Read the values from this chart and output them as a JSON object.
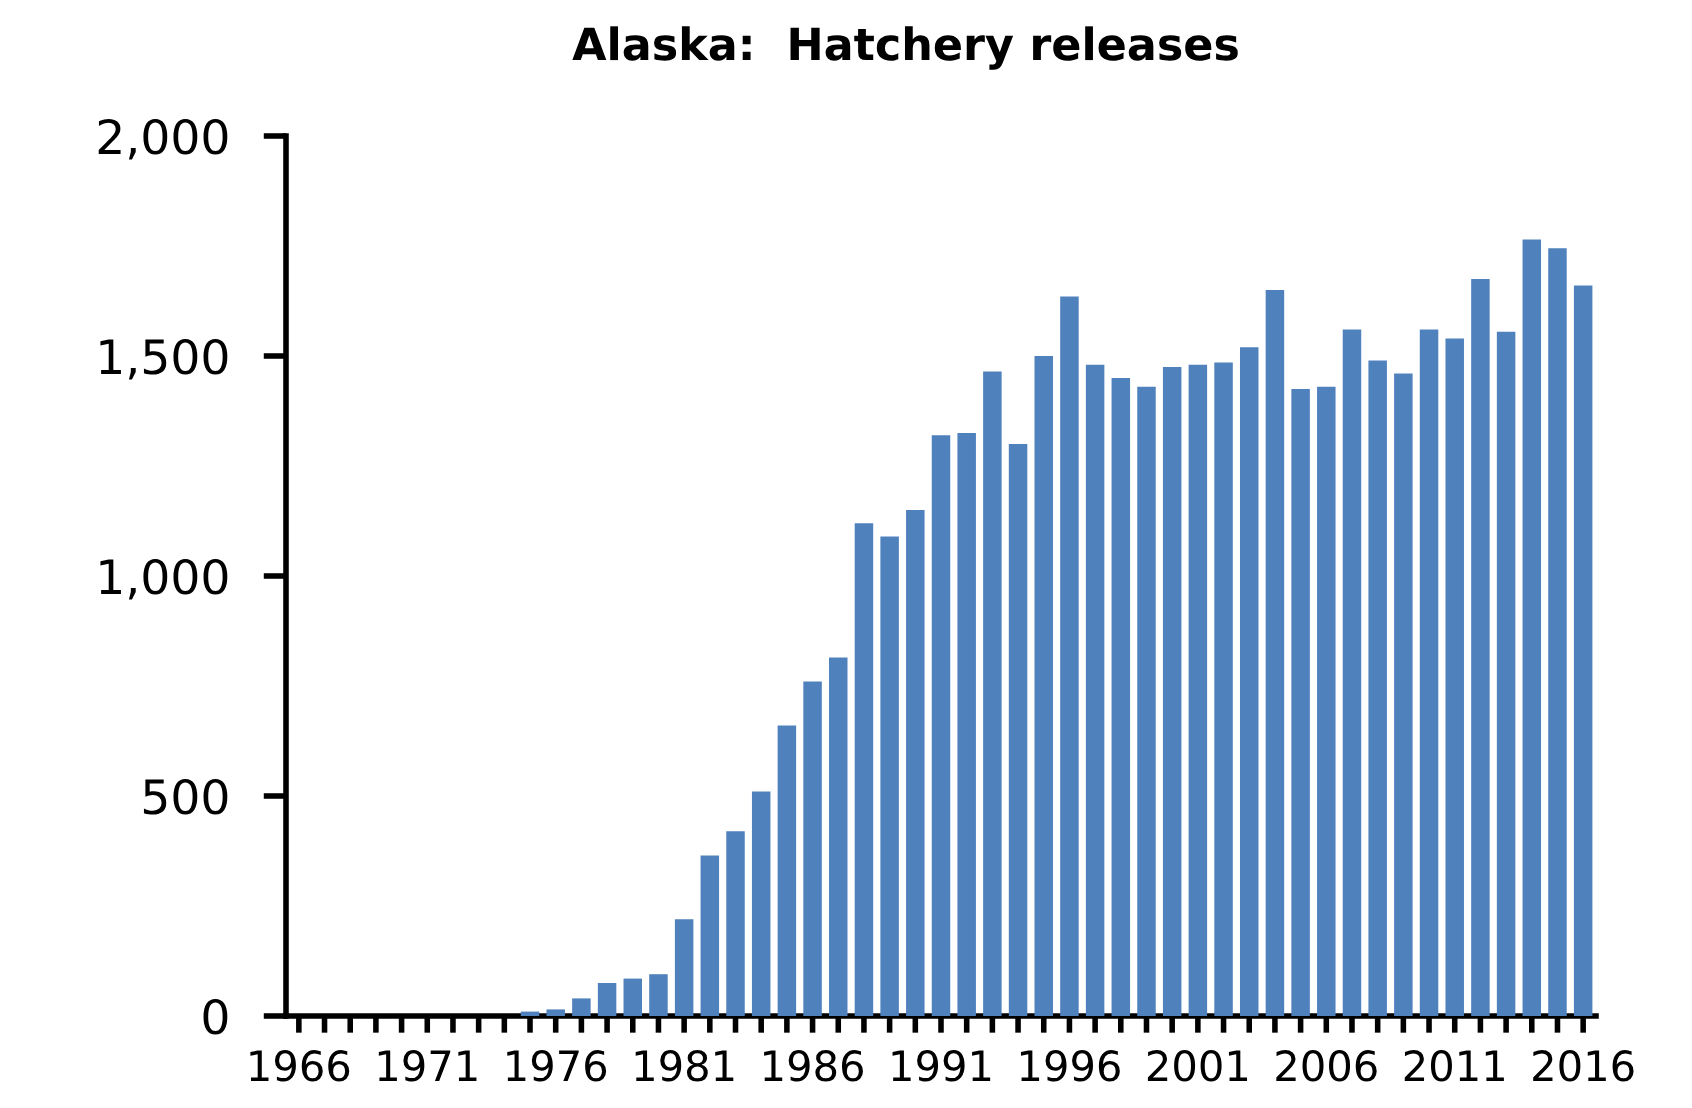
{
  "chart_data": {
    "type": "bar",
    "title": "Alaska:  Hatchery releases",
    "categories": [
      "1966",
      null,
      null,
      null,
      null,
      "1971",
      null,
      null,
      null,
      null,
      "1976",
      null,
      null,
      null,
      null,
      "1981",
      null,
      null,
      null,
      null,
      "1986",
      null,
      null,
      null,
      null,
      "1991",
      null,
      null,
      null,
      null,
      "1996",
      null,
      null,
      null,
      null,
      "2001",
      null,
      null,
      null,
      null,
      "2006",
      null,
      null,
      null,
      null,
      "2011",
      null,
      null,
      null,
      null,
      "2016"
    ],
    "values": [
      0,
      0,
      0,
      0,
      0,
      0,
      0,
      0,
      0,
      10,
      15,
      40,
      75,
      85,
      95,
      220,
      365,
      420,
      510,
      660,
      760,
      815,
      1120,
      1090,
      1150,
      1320,
      1325,
      1465,
      1300,
      1500,
      1635,
      1480,
      1450,
      1430,
      1475,
      1480,
      1485,
      1520,
      1650,
      1425,
      1430,
      1560,
      1490,
      1460,
      1560,
      1540,
      1675,
      1555,
      1765,
      1745,
      1660
    ],
    "color": "#4f81bd",
    "ylim": [
      0,
      2000
    ],
    "yticks": [
      {
        "value": 0,
        "label": "0"
      },
      {
        "value": 500,
        "label": "500"
      },
      {
        "value": 1000,
        "label": "1,000"
      },
      {
        "value": 1500,
        "label": "1,500"
      },
      {
        "value": 2000,
        "label": "2,000"
      }
    ],
    "grid": false,
    "legend": false
  }
}
